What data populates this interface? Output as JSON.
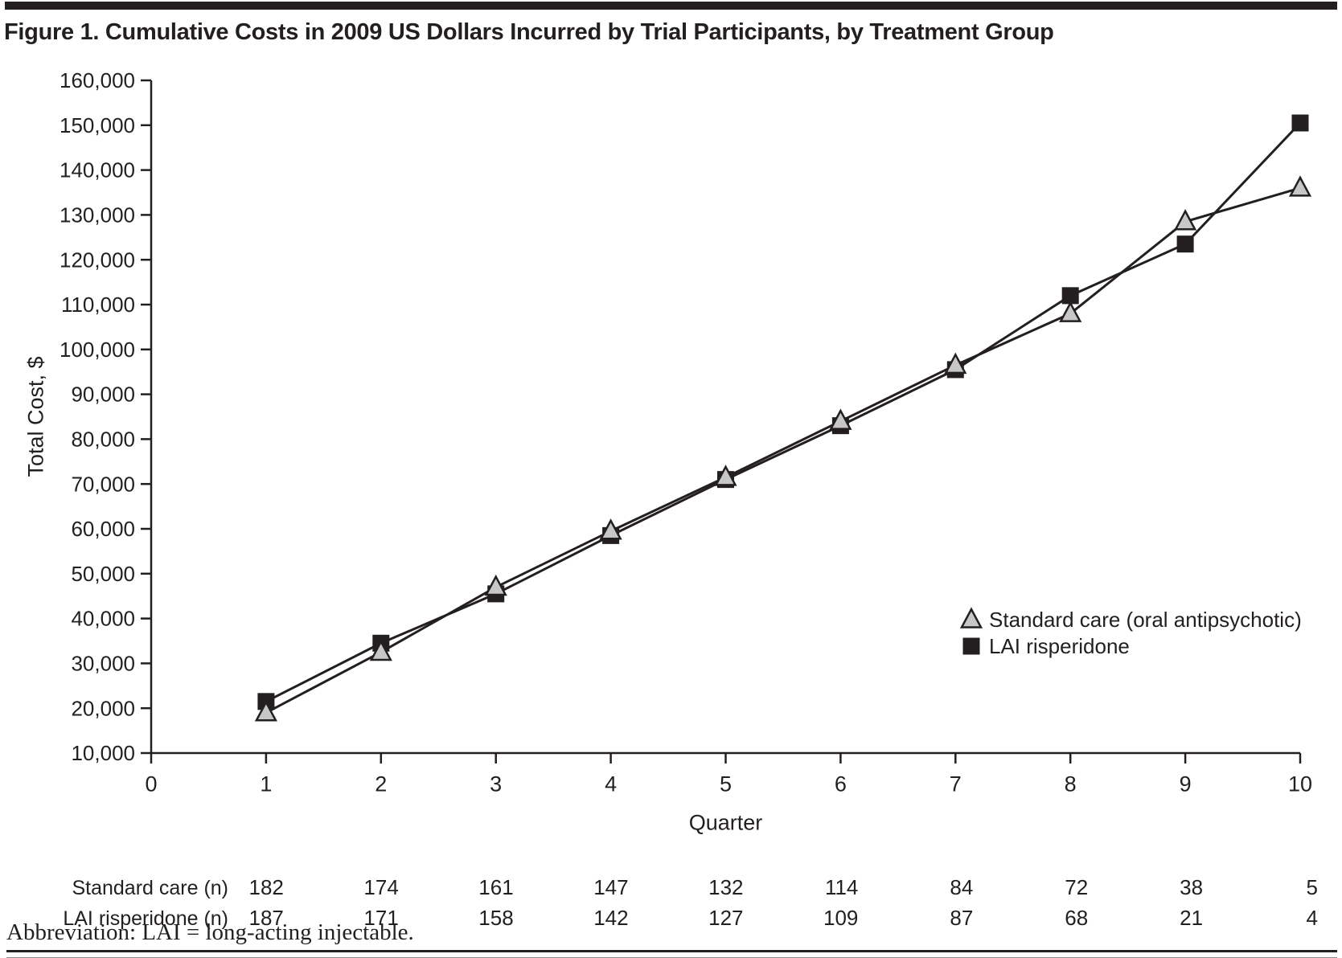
{
  "page": {
    "title": "Figure 1. Cumulative Costs in 2009 US Dollars Incurred by Trial Participants, by Treatment Group",
    "abbreviation_note": "Abbreviation: LAI = long-acting injectable."
  },
  "colors": {
    "ink": "#231f20",
    "triangle_fill": "#c7c7c9",
    "square_fill": "#231f20",
    "background": "#ffffff"
  },
  "chart_data": {
    "type": "line",
    "title": "Cumulative Costs in 2009 US Dollars Incurred by Trial Participants, by Treatment Group",
    "xlabel": "Quarter",
    "ylabel": "Total Cost, $",
    "x": [
      1,
      2,
      3,
      4,
      5,
      6,
      7,
      8,
      9,
      10
    ],
    "xlim": [
      0,
      10
    ],
    "xticks": [
      0,
      1,
      2,
      3,
      4,
      5,
      6,
      7,
      8,
      9,
      10
    ],
    "ylim": [
      10000,
      160000
    ],
    "ytick_step": 10000,
    "yticks": [
      10000,
      20000,
      30000,
      40000,
      50000,
      60000,
      70000,
      80000,
      90000,
      100000,
      110000,
      120000,
      130000,
      140000,
      150000,
      160000
    ],
    "grid": false,
    "legend_position": "inside-right",
    "series": [
      {
        "name": "Standard care (oral antipsychotic)",
        "marker": "triangle",
        "values": [
          19000,
          32500,
          47000,
          59500,
          71500,
          84000,
          96500,
          108000,
          128500,
          136000
        ]
      },
      {
        "name": "LAI risperidone",
        "marker": "square",
        "values": [
          21500,
          34500,
          45500,
          58500,
          71000,
          83000,
          95500,
          112000,
          123500,
          150500
        ]
      }
    ],
    "at_risk_table": {
      "rows": [
        {
          "label": "Standard care (n)",
          "values": [
            182,
            174,
            161,
            147,
            132,
            114,
            84,
            72,
            38,
            5
          ]
        },
        {
          "label": "LAI risperidone (n)",
          "values": [
            187,
            171,
            158,
            142,
            127,
            109,
            87,
            68,
            21,
            4
          ]
        }
      ]
    }
  }
}
